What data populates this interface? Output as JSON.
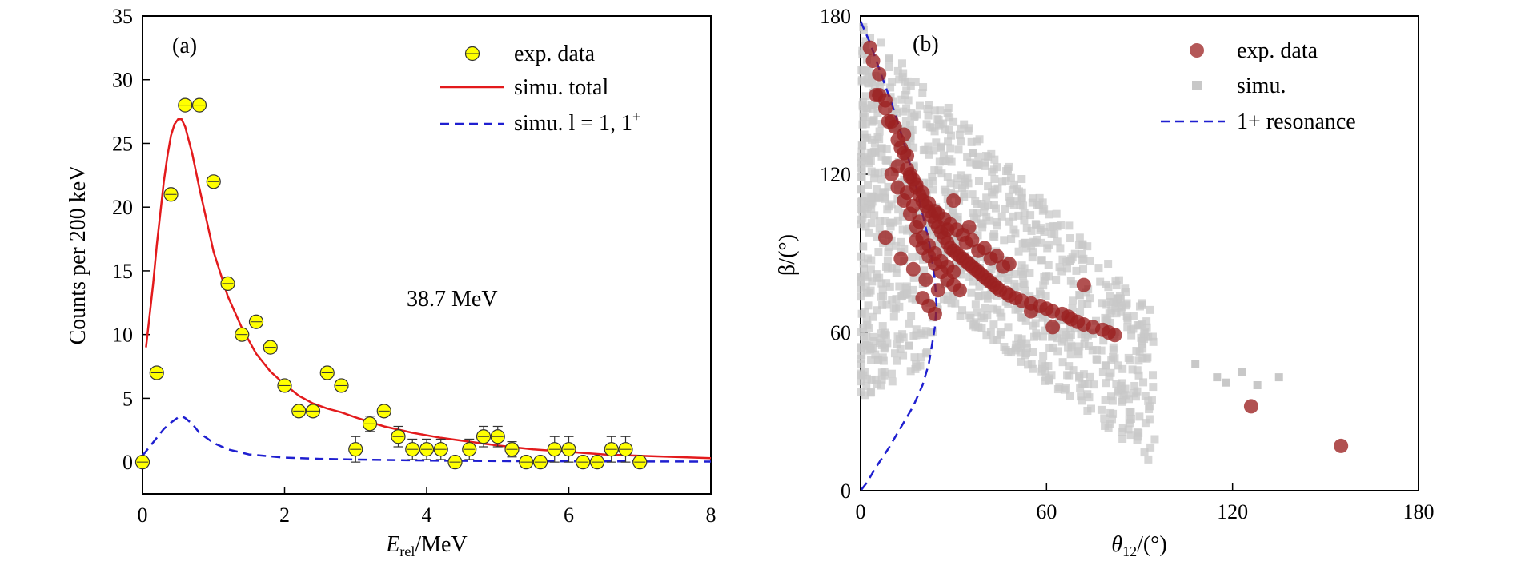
{
  "chart_data": [
    {
      "type": "scatter",
      "panel_label": "(a)",
      "xlabel_main": "E",
      "xlabel_sub": "rel",
      "xlabel_unit": "/MeV",
      "ylabel": "Counts per 200 keV",
      "xlim": [
        0,
        8
      ],
      "ylim": [
        -2.5,
        35
      ],
      "xticks": [
        0,
        2,
        4,
        6,
        8
      ],
      "yticks": [
        0,
        5,
        10,
        15,
        20,
        25,
        30,
        35
      ],
      "annotation": "38.7 MeV",
      "legend_position": "top-right",
      "series": [
        {
          "name": "exp. data",
          "kind": "points_with_errorbars",
          "color": "#ffff00",
          "x": [
            0.0,
            0.2,
            0.4,
            0.6,
            0.8,
            1.0,
            1.2,
            1.4,
            1.6,
            1.8,
            2.0,
            2.2,
            2.4,
            2.6,
            2.8,
            3.0,
            3.2,
            3.4,
            3.6,
            3.8,
            4.0,
            4.2,
            4.4,
            4.6,
            4.8,
            5.0,
            5.2,
            5.4,
            5.6,
            5.8,
            6.0,
            6.2,
            6.4,
            6.6,
            6.8,
            7.0
          ],
          "y": [
            0,
            7,
            21,
            28,
            28,
            22,
            14,
            10,
            11,
            9,
            6,
            4,
            4,
            7,
            6,
            1,
            3,
            4,
            2,
            1,
            1,
            1,
            0,
            1,
            2,
            2,
            1,
            0,
            0,
            1,
            1,
            0,
            0,
            1,
            1,
            0
          ],
          "yerr": [
            0,
            0,
            0,
            0,
            0,
            0,
            0,
            0,
            0,
            0,
            0,
            0,
            0,
            0,
            0,
            1,
            0.6,
            0,
            0.8,
            0.8,
            0.8,
            0.8,
            0,
            0.8,
            0.8,
            0.8,
            0.6,
            0,
            0,
            1,
            1,
            0,
            0,
            1,
            1,
            0
          ]
        },
        {
          "name": "simu. total",
          "kind": "line",
          "color": "#e31a1c",
          "x": [
            0.05,
            0.1,
            0.15,
            0.2,
            0.25,
            0.3,
            0.35,
            0.4,
            0.45,
            0.5,
            0.55,
            0.6,
            0.7,
            0.8,
            0.9,
            1.0,
            1.2,
            1.4,
            1.6,
            1.8,
            2.0,
            2.2,
            2.4,
            2.6,
            2.8,
            3.0,
            3.4,
            3.8,
            4.2,
            4.6,
            5.0,
            5.5,
            6.0,
            6.5,
            7.0,
            7.5,
            8.0
          ],
          "y": [
            9,
            11.5,
            14,
            17,
            19.5,
            22,
            24,
            25.6,
            26.5,
            26.9,
            26.9,
            26.3,
            24.2,
            21.5,
            19,
            16.5,
            13,
            10.5,
            8.5,
            7.1,
            6.1,
            5.2,
            4.6,
            4.2,
            3.9,
            3.5,
            2.8,
            2.3,
            1.9,
            1.6,
            1.3,
            1.0,
            0.8,
            0.6,
            0.5,
            0.4,
            0.3
          ]
        },
        {
          "name": "simu. l = 1, 1",
          "name_sup": "+",
          "kind": "dashed_line",
          "color": "#1f1fd0",
          "x": [
            0.0,
            0.1,
            0.2,
            0.3,
            0.4,
            0.5,
            0.55,
            0.6,
            0.7,
            0.8,
            1.0,
            1.2,
            1.5,
            2.0,
            2.5,
            3.0,
            4.0,
            5.0,
            6.0,
            7.0,
            8.0
          ],
          "y": [
            0.5,
            1.2,
            1.9,
            2.6,
            3.1,
            3.5,
            3.6,
            3.45,
            3.0,
            2.3,
            1.5,
            1.0,
            0.6,
            0.35,
            0.25,
            0.2,
            0.12,
            0.08,
            0.06,
            0.05,
            0.04
          ]
        }
      ]
    },
    {
      "type": "scatter",
      "panel_label": "(b)",
      "xlabel_main": "θ",
      "xlabel_sub": "12",
      "xlabel_unit": "/(°)",
      "ylabel": "β/(°)",
      "xlim": [
        0,
        180
      ],
      "ylim": [
        0,
        180
      ],
      "xticks": [
        0,
        60,
        120,
        180
      ],
      "yticks": [
        0,
        60,
        120,
        180
      ],
      "legend_position": "top-right",
      "series": [
        {
          "name": "exp. data",
          "kind": "points",
          "color": "#9b2020",
          "x": [
            3,
            4,
            6,
            6,
            8,
            8,
            10,
            11,
            12,
            13,
            14,
            15,
            15,
            16,
            17,
            18,
            19,
            20,
            21,
            22,
            23,
            24,
            25,
            26,
            27,
            28,
            29,
            30,
            31,
            32,
            33,
            34,
            35,
            36,
            37,
            38,
            39,
            40,
            41,
            42,
            43,
            44,
            45,
            47,
            48,
            50,
            52,
            55,
            58,
            60,
            62,
            65,
            67,
            68,
            70,
            72,
            75,
            78,
            80,
            82,
            10,
            12,
            14,
            16,
            18,
            20,
            22,
            24,
            26,
            28,
            30,
            25,
            27,
            29,
            31,
            33,
            18,
            20,
            22,
            24,
            26,
            28,
            30,
            32,
            20,
            22,
            24,
            15,
            17,
            19,
            8,
            13,
            17,
            21,
            25,
            36,
            40,
            44,
            48,
            12,
            16,
            18,
            20,
            22,
            24,
            28,
            34,
            38,
            42,
            46,
            126,
            155,
            5,
            9,
            14,
            30,
            35,
            55,
            62,
            72
          ],
          "y": [
            168,
            163,
            158,
            150,
            148,
            145,
            140,
            138,
            133,
            130,
            128,
            127,
            122,
            120,
            118,
            115,
            112,
            110,
            108,
            106,
            104,
            102,
            100,
            98,
            96,
            94,
            92,
            91,
            90,
            89,
            88,
            87,
            86,
            85,
            84,
            83,
            82,
            81,
            80,
            79,
            78,
            77,
            76,
            75,
            74,
            73,
            72,
            71,
            70,
            69,
            68,
            67,
            66,
            65,
            64,
            63,
            62,
            61,
            60,
            59,
            120,
            115,
            110,
            105,
            100,
            96,
            93,
            90,
            87,
            85,
            83,
            105,
            103,
            101,
            99,
            97,
            95,
            92,
            89,
            86,
            83,
            80,
            78,
            76,
            73,
            70,
            67,
            113,
            108,
            102,
            96,
            88,
            84,
            80,
            76,
            95,
            92,
            89,
            86,
            123,
            119,
            116,
            113,
            109,
            106,
            99,
            94,
            91,
            88,
            85,
            32,
            17,
            150,
            140,
            135,
            110,
            100,
            68,
            62,
            78
          ],
          "note": "approximate positions read from the figure"
        },
        {
          "name": "simu.",
          "kind": "points",
          "color": "#c8c8c8"
        },
        {
          "name": "1+ resonance",
          "kind": "dashed_line",
          "color": "#1f1fd0",
          "x": [
            0,
            3,
            6,
            10,
            14,
            18,
            20,
            22,
            23,
            24,
            24.5,
            24,
            23,
            22,
            20,
            17,
            13,
            9,
            5,
            2,
            0
          ],
          "y": [
            178,
            170,
            160,
            147,
            132,
            115,
            105,
            95,
            88,
            80,
            70,
            62,
            55,
            48,
            40,
            32,
            24,
            16,
            9,
            3,
            0
          ]
        }
      ]
    }
  ]
}
